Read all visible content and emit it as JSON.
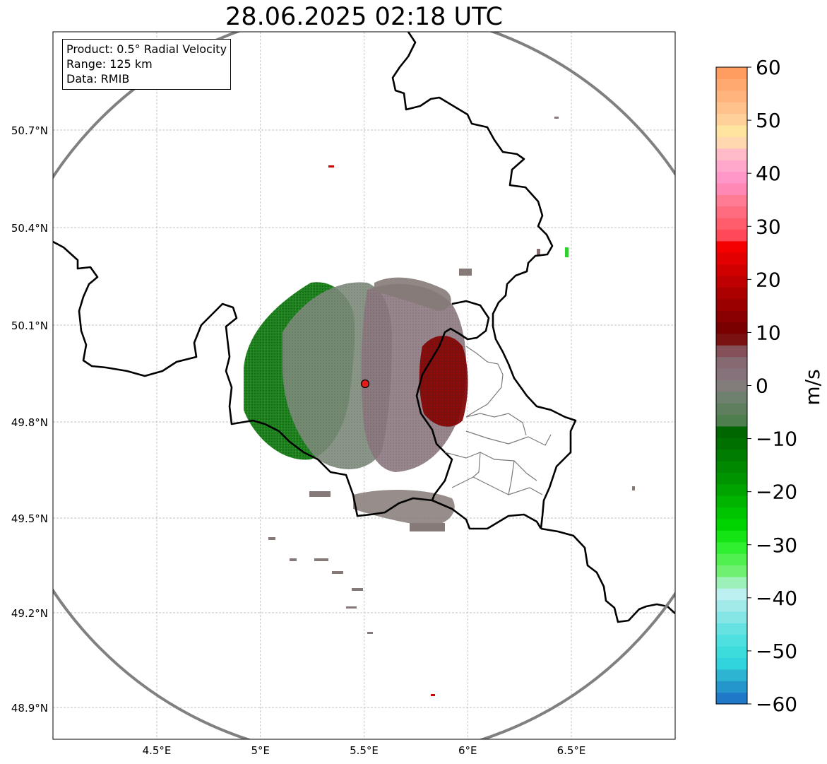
{
  "title": "28.06.2025 02:18 UTC",
  "info": {
    "product": "Product: 0.5° Radial Velocity",
    "range": "Range: 125 km",
    "data": "Data: RMIB"
  },
  "map": {
    "lon_range": [
      4.0,
      7.0
    ],
    "lat_range": [
      48.8,
      51.0
    ],
    "lon_ticks": [
      {
        "value": 4.5,
        "label": "4.5°E"
      },
      {
        "value": 5.0,
        "label": "5°E"
      },
      {
        "value": 5.5,
        "label": "5.5°E"
      },
      {
        "value": 6.0,
        "label": "6°E"
      },
      {
        "value": 6.5,
        "label": "6.5°E"
      }
    ],
    "lat_ticks": [
      {
        "value": 50.7,
        "label": "50.7°N"
      },
      {
        "value": 50.4,
        "label": "50.4°N"
      },
      {
        "value": 50.1,
        "label": "50.1°N"
      },
      {
        "value": 49.8,
        "label": "49.8°N"
      },
      {
        "value": 49.5,
        "label": "49.5°N"
      },
      {
        "value": 49.2,
        "label": "49.2°N"
      },
      {
        "value": 48.9,
        "label": "48.9°N"
      }
    ],
    "radar": {
      "lon": 5.505,
      "lat": 49.914,
      "range_km": 125
    },
    "grid": true
  },
  "colorbar": {
    "label": "m/s",
    "min": -60,
    "max": 60,
    "ticks": [
      {
        "value": 60,
        "label": "60"
      },
      {
        "value": 50,
        "label": "50"
      },
      {
        "value": 40,
        "label": "40"
      },
      {
        "value": 30,
        "label": "30"
      },
      {
        "value": 20,
        "label": "20"
      },
      {
        "value": 10,
        "label": "10"
      },
      {
        "value": 0,
        "label": "0"
      },
      {
        "value": -10,
        "label": "−10"
      },
      {
        "value": -20,
        "label": "−20"
      },
      {
        "value": -30,
        "label": "−30"
      },
      {
        "value": -40,
        "label": "−40"
      },
      {
        "value": -50,
        "label": "−50"
      },
      {
        "value": -60,
        "label": "−60"
      }
    ],
    "colors": [
      "#1f78c8",
      "#2596cc",
      "#2cb4d2",
      "#31d3dc",
      "#3cdcdc",
      "#4ee0e0",
      "#66e2e2",
      "#86e6e6",
      "#a2eaea",
      "#bdf0f0",
      "#9cf0b8",
      "#70f070",
      "#50f050",
      "#30ee30",
      "#14e414",
      "#00d400",
      "#00c400",
      "#00b400",
      "#00a400",
      "#009400",
      "#008800",
      "#007c00",
      "#007000",
      "#006600",
      "#4e7e4e",
      "#5e7e5e",
      "#6e806e",
      "#827c7a",
      "#86727a",
      "#866a72",
      "#865058",
      "#7a1212",
      "#7a0000",
      "#8a0000",
      "#9a0000",
      "#aa0000",
      "#be0000",
      "#d00000",
      "#e20000",
      "#f40000",
      "#ff4858",
      "#ff5c6c",
      "#ff6c80",
      "#ff7c94",
      "#ff88b4",
      "#ff98c8",
      "#ffa8cc",
      "#ffbcc8",
      "#ffd8b0",
      "#ffe4a0",
      "#ffd09a",
      "#ffc28c",
      "#ffb47e",
      "#ffa870",
      "#ff9c60"
    ]
  }
}
